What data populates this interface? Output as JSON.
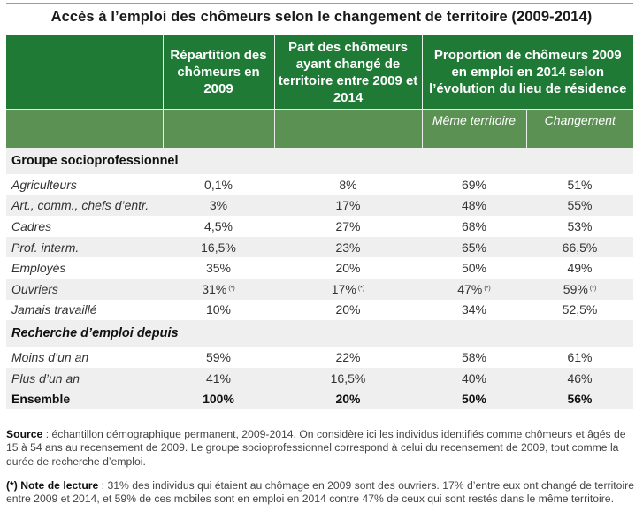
{
  "title": "Accès à l’emploi des chômeurs selon le changement de territoire (2009-2014)",
  "accent_color": "#f08a1c",
  "header_color": "#1f7a36",
  "subheader_color": "#5b9153",
  "headers": {
    "col1": "Répartition des chômeurs en 2009",
    "col2": "Part des chômeurs ayant changé de territoire entre 2009 et 2014",
    "col34": "Proportion de chômeurs 2009 en emploi en 2014 selon l’évolution du lieu de résidence",
    "sub3": "Même territoire",
    "sub4": "Changement"
  },
  "sections": [
    {
      "title": "Groupe socioprofessionnel",
      "rows": [
        {
          "label": "Agriculteurs",
          "v": [
            "0,1%",
            "8%",
            "69%",
            "51%"
          ],
          "note": [
            "",
            "",
            "",
            ""
          ]
        },
        {
          "label": "Art., comm., chefs d’entr.",
          "v": [
            "3%",
            "17%",
            "48%",
            "55%"
          ],
          "note": [
            "",
            "",
            "",
            ""
          ]
        },
        {
          "label": "Cadres",
          "v": [
            "4,5%",
            "27%",
            "68%",
            "53%"
          ],
          "note": [
            "",
            "",
            "",
            ""
          ]
        },
        {
          "label": "Prof. interm.",
          "v": [
            "16,5%",
            "23%",
            "65%",
            "66,5%"
          ],
          "note": [
            "",
            "",
            "",
            ""
          ]
        },
        {
          "label": "Employés",
          "v": [
            "35%",
            "20%",
            "50%",
            "49%"
          ],
          "note": [
            "",
            "",
            "",
            ""
          ]
        },
        {
          "label": "Ouvriers",
          "v": [
            "31%",
            "17%",
            "47%",
            "59%"
          ],
          "note": [
            "(*)",
            "(*)",
            "(*)",
            "(*)"
          ]
        },
        {
          "label": "Jamais travaillé",
          "v": [
            "10%",
            "20%",
            "34%",
            "52,5%"
          ],
          "note": [
            "",
            "",
            "",
            ""
          ]
        }
      ]
    },
    {
      "title": "Recherche d’emploi depuis",
      "rows": [
        {
          "label": "Moins d’un an",
          "v": [
            "59%",
            "22%",
            "58%",
            "61%"
          ],
          "note": [
            "",
            "",
            "",
            ""
          ]
        },
        {
          "label": "Plus d’un an",
          "v": [
            "41%",
            "16,5%",
            "40%",
            "46%"
          ],
          "note": [
            "",
            "",
            "",
            ""
          ]
        }
      ]
    }
  ],
  "total": {
    "label": "Ensemble",
    "v": [
      "100%",
      "20%",
      "50%",
      "56%"
    ]
  },
  "source": {
    "label": "Source",
    "text": " : échantillon démographique permanent, 2009-2014. On considère ici les individus identifiés comme chômeurs et âgés de 15 à 54 ans au recensement de 2009. Le groupe socioprofessionnel correspond à celui du recensement de 2009, tout comme la durée de recherche d’emploi."
  },
  "reading_note": {
    "label": "(*) Note de lecture",
    "text": " : 31% des individus qui étaient au chômage en 2009 sont des ouvriers. 17% d’entre eux ont changé de territoire entre 2009 et 2014, et 59% de ces mobiles sont en emploi en 2014 contre 47% de ceux qui sont restés dans le même territoire."
  }
}
